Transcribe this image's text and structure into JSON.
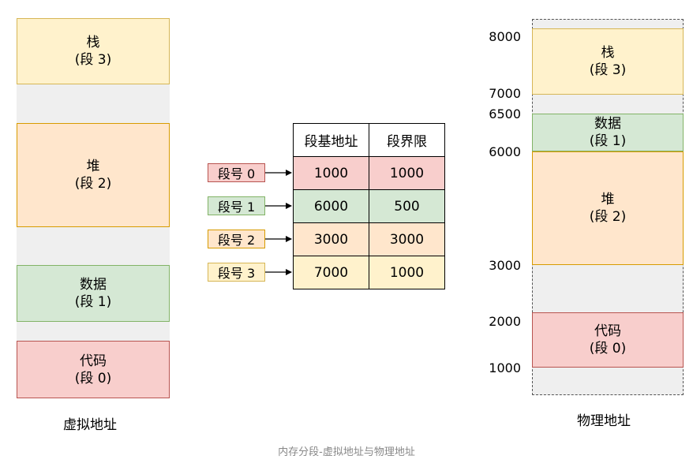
{
  "virtual": {
    "caption": "虚拟地址",
    "stack": {
      "name": "栈",
      "seg": "(段 3)"
    },
    "heap": {
      "name": "堆",
      "seg": "(段 2)"
    },
    "data": {
      "name": "数据",
      "seg": "(段 1)"
    },
    "code": {
      "name": "代码",
      "seg": "(段 0)"
    }
  },
  "table": {
    "headers": [
      "段基地址",
      "段界限"
    ],
    "rows": [
      {
        "label": "段号 0",
        "base": "1000",
        "limit": "1000"
      },
      {
        "label": "段号 1",
        "base": "6000",
        "limit": "500"
      },
      {
        "label": "段号 2",
        "base": "3000",
        "limit": "3000"
      },
      {
        "label": "段号 3",
        "base": "7000",
        "limit": "1000"
      }
    ]
  },
  "physical": {
    "caption": "物理地址",
    "ticks": [
      "8000",
      "7000",
      "6500",
      "6000",
      "3000",
      "2000",
      "1000"
    ],
    "stack": {
      "name": "栈",
      "seg": "(段 3)"
    },
    "data": {
      "name": "数据",
      "seg": "(段 1)"
    },
    "heap": {
      "name": "堆",
      "seg": "(段 2)"
    },
    "code": {
      "name": "代码",
      "seg": "(段 0)"
    }
  },
  "footer": "内存分段-虚拟地址与物理地址",
  "colors": {
    "stack": "#fff2cc",
    "heap": "#ffe6cc",
    "data": "#d5e8d4",
    "code": "#f8cecc",
    "gap": "#efefef"
  }
}
